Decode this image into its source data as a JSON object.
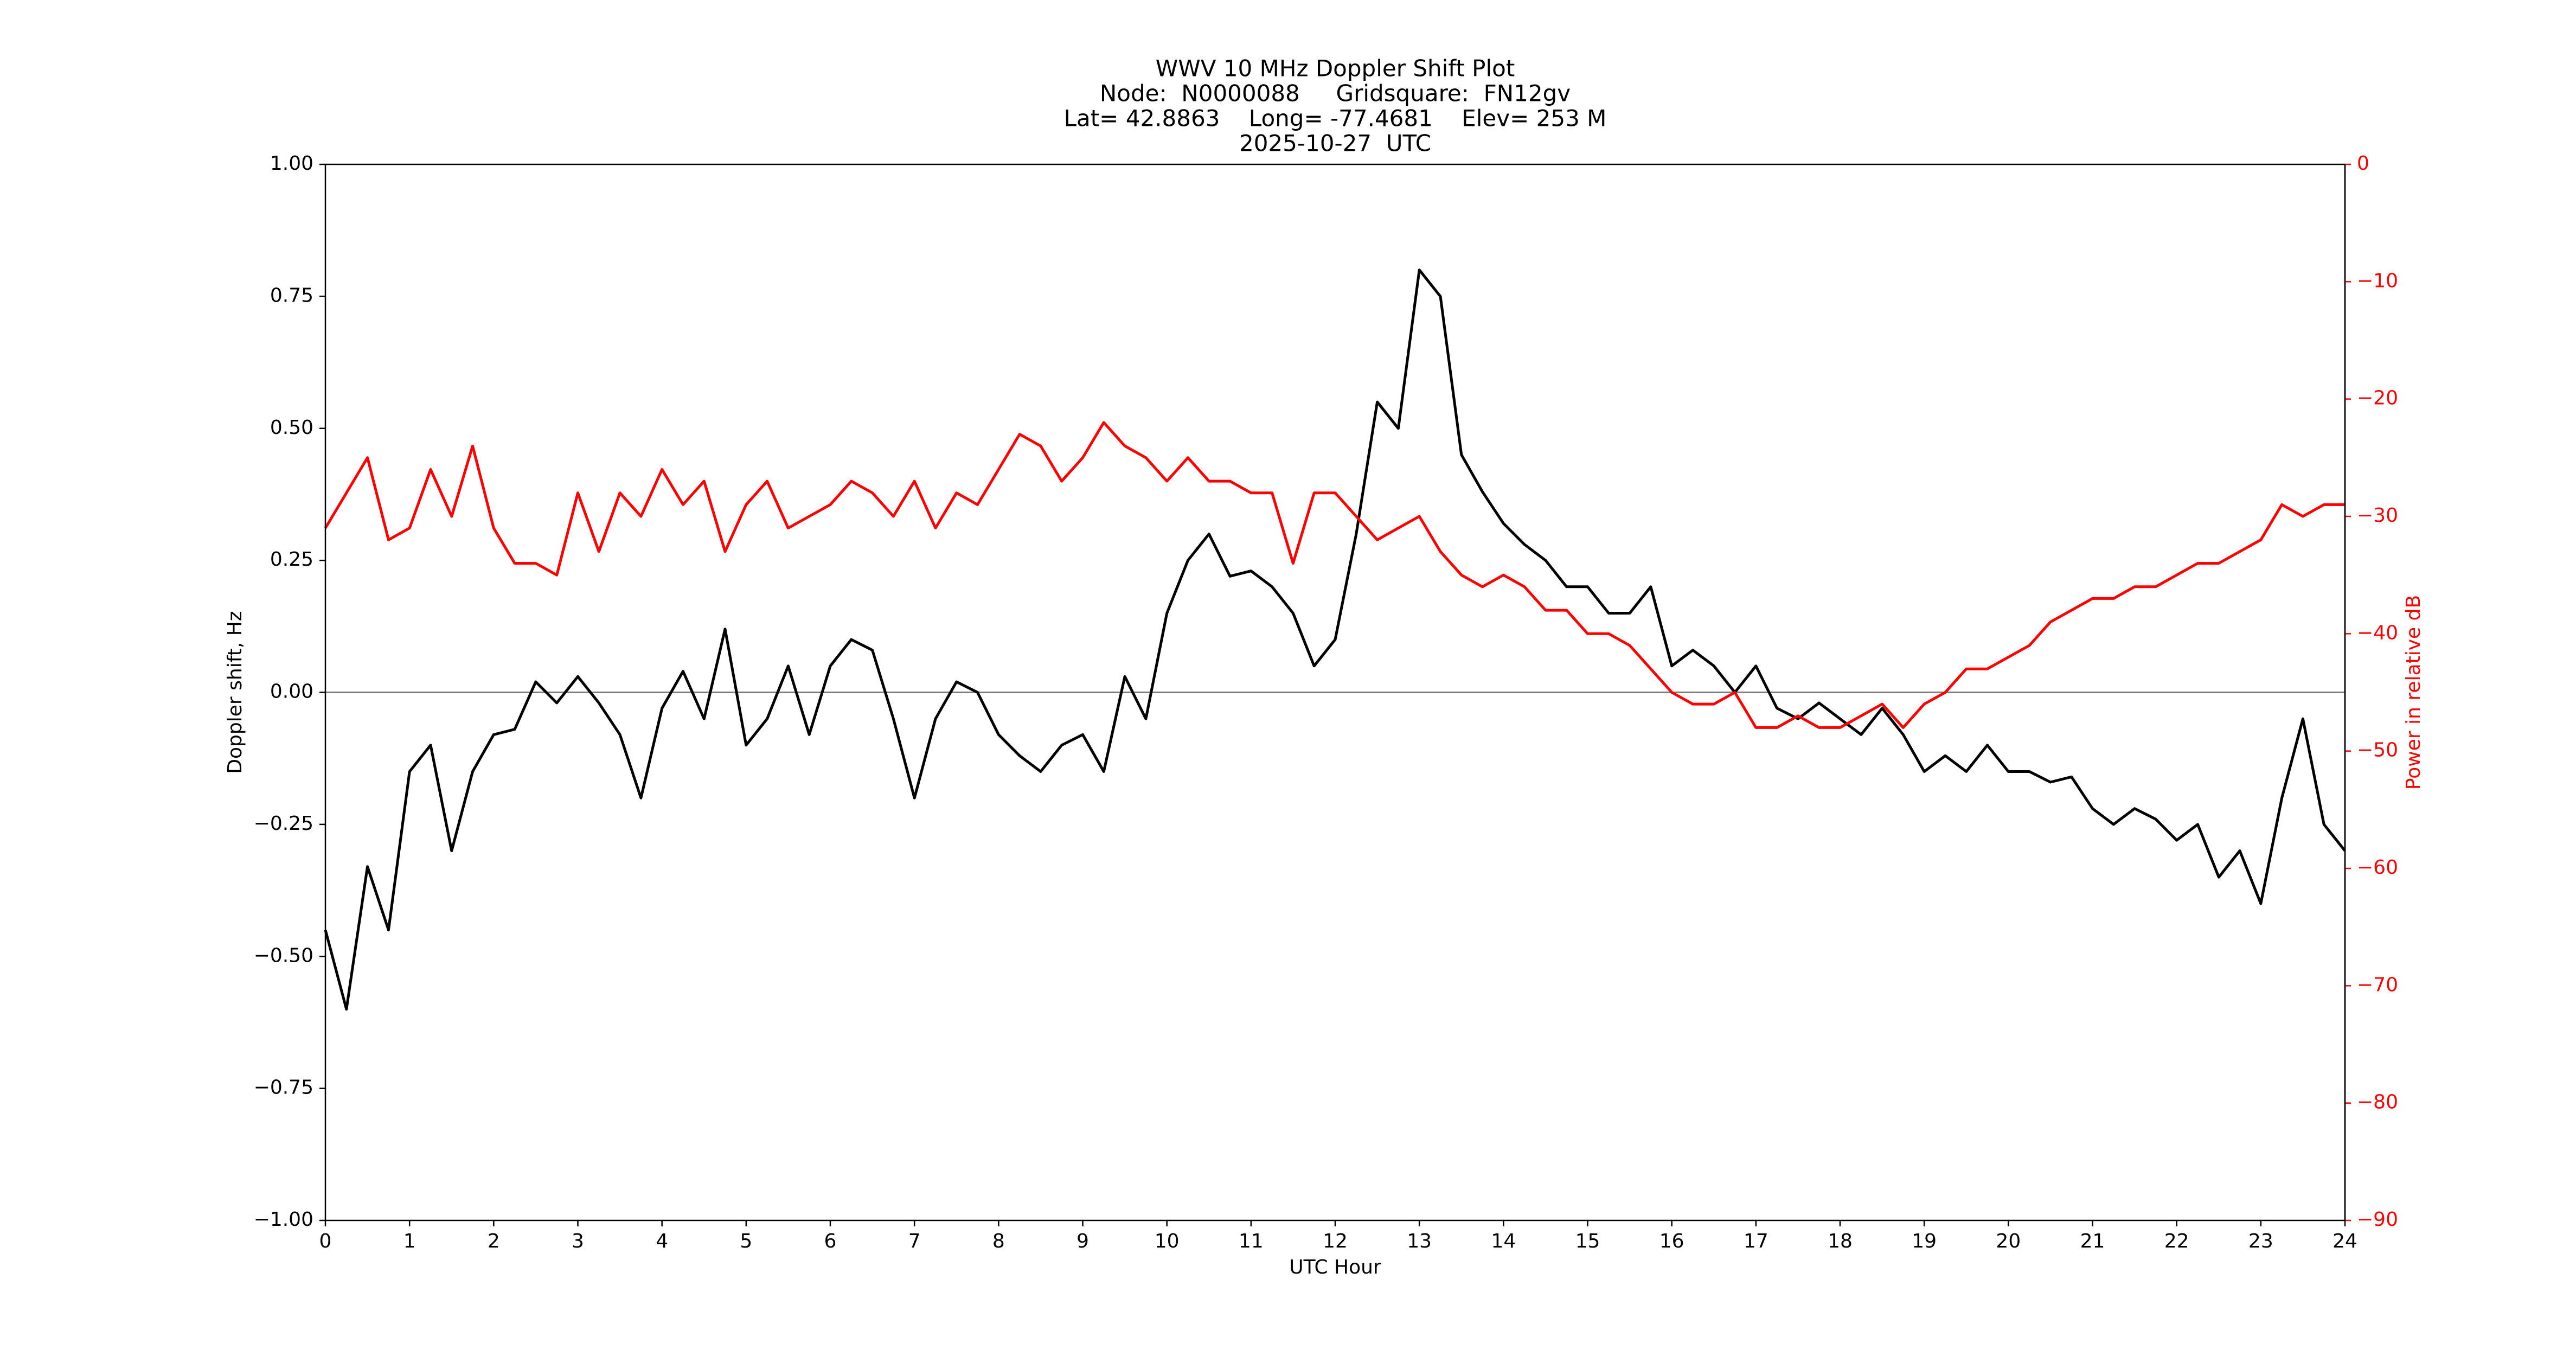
{
  "chart_data": {
    "type": "line",
    "title": [
      "WWV 10 MHz Doppler Shift Plot",
      "Node:  N0000088     Gridsquare:  FN12gv",
      "Lat= 42.8863    Long= -77.4681    Elev= 253 M",
      "2025-10-27  UTC"
    ],
    "x_label": "UTC Hour",
    "y_label": "Doppler shift, Hz",
    "y2_label": "Power in relative dB",
    "x": [
      0,
      0.25,
      0.5,
      0.75,
      1,
      1.25,
      1.5,
      1.75,
      2,
      2.25,
      2.5,
      2.75,
      3,
      3.25,
      3.5,
      3.75,
      4,
      4.25,
      4.5,
      4.75,
      5,
      5.25,
      5.5,
      5.75,
      6,
      6.25,
      6.5,
      6.75,
      7,
      7.25,
      7.5,
      7.75,
      8,
      8.25,
      8.5,
      8.75,
      9,
      9.25,
      9.5,
      9.75,
      10,
      10.25,
      10.5,
      10.75,
      11,
      11.25,
      11.5,
      11.75,
      12,
      12.25,
      12.5,
      12.75,
      13,
      13.25,
      13.5,
      13.75,
      14,
      14.25,
      14.5,
      14.75,
      15,
      15.25,
      15.5,
      15.75,
      16,
      16.25,
      16.5,
      16.75,
      17,
      17.25,
      17.5,
      17.75,
      18,
      18.25,
      18.5,
      18.75,
      19,
      19.25,
      19.5,
      19.75,
      20,
      20.25,
      20.5,
      20.75,
      21,
      21.25,
      21.5,
      21.75,
      22,
      22.25,
      22.5,
      22.75,
      23,
      23.25,
      23.5,
      23.75,
      24
    ],
    "series": [
      {
        "name": "Doppler shift",
        "color": "#000000",
        "values": [
          -0.45,
          -0.6,
          -0.33,
          -0.45,
          -0.15,
          -0.1,
          -0.3,
          -0.15,
          -0.08,
          -0.07,
          0.02,
          -0.02,
          0.03,
          -0.02,
          -0.08,
          -0.2,
          -0.03,
          0.04,
          -0.05,
          0.12,
          -0.1,
          -0.05,
          0.05,
          -0.08,
          0.05,
          0.1,
          0.08,
          -0.05,
          -0.2,
          -0.05,
          0.02,
          0.0,
          -0.08,
          -0.12,
          -0.15,
          -0.1,
          -0.08,
          -0.15,
          0.03,
          -0.05,
          0.15,
          0.25,
          0.3,
          0.22,
          0.23,
          0.2,
          0.15,
          0.05,
          0.1,
          0.3,
          0.55,
          0.5,
          0.8,
          0.75,
          0.45,
          0.38,
          0.32,
          0.28,
          0.25,
          0.2,
          0.2,
          0.15,
          0.15,
          0.2,
          0.05,
          0.08,
          0.05,
          0.0,
          0.05,
          -0.03,
          -0.05,
          -0.02,
          -0.05,
          -0.08,
          -0.03,
          -0.08,
          -0.15,
          -0.12,
          -0.15,
          -0.1,
          -0.15,
          -0.15,
          -0.17,
          -0.16,
          -0.22,
          -0.25,
          -0.22,
          -0.24,
          -0.28,
          -0.25,
          -0.35,
          -0.3,
          -0.4,
          -0.2,
          -0.05,
          -0.25,
          -0.3
        ]
      },
      {
        "name": "Power",
        "color": "#ff0000",
        "axis": "y2",
        "values": [
          -31,
          -28,
          -25,
          -32,
          -31,
          -26,
          -30,
          -24,
          -31,
          -34,
          -34,
          -35,
          -28,
          -33,
          -28,
          -30,
          -26,
          -29,
          -27,
          -33,
          -29,
          -27,
          -31,
          -30,
          -29,
          -27,
          -28,
          -30,
          -27,
          -31,
          -28,
          -29,
          -26,
          -23,
          -24,
          -27,
          -25,
          -22,
          -24,
          -25,
          -27,
          -25,
          -27,
          -27,
          -28,
          -28,
          -34,
          -28,
          -28,
          -30,
          -32,
          -31,
          -30,
          -33,
          -35,
          -36,
          -35,
          -36,
          -38,
          -38,
          -40,
          -40,
          -41,
          -43,
          -45,
          -46,
          -46,
          -45,
          -48,
          -48,
          -47,
          -48,
          -48,
          -47,
          -46,
          -48,
          -46,
          -45,
          -43,
          -43,
          -42,
          -41,
          -39,
          -38,
          -37,
          -37,
          -36,
          -36,
          -35,
          -34,
          -34,
          -33,
          -32,
          -29,
          -30,
          -29,
          -29
        ]
      }
    ],
    "xlim": [
      0,
      24
    ],
    "xticks": [
      0,
      1,
      2,
      3,
      4,
      5,
      6,
      7,
      8,
      9,
      10,
      11,
      12,
      13,
      14,
      15,
      16,
      17,
      18,
      19,
      20,
      21,
      22,
      23,
      24
    ],
    "ylim": [
      -1,
      1
    ],
    "yticks": [
      {
        "value": -1,
        "label": "−1.00"
      },
      {
        "value": -0.75,
        "label": "−0.75"
      },
      {
        "value": -0.5,
        "label": "−0.50"
      },
      {
        "value": -0.25,
        "label": "−0.25"
      },
      {
        "value": 0,
        "label": "0.00"
      },
      {
        "value": 0.25,
        "label": "0.25"
      },
      {
        "value": 0.5,
        "label": "0.50"
      },
      {
        "value": 0.75,
        "label": "0.75"
      },
      {
        "value": 1,
        "label": "1.00"
      }
    ],
    "y2lim": [
      -90,
      0
    ],
    "y2ticks": [
      {
        "value": -90,
        "label": "−90"
      },
      {
        "value": -80,
        "label": "−80"
      },
      {
        "value": -70,
        "label": "−70"
      },
      {
        "value": -60,
        "label": "−60"
      },
      {
        "value": -50,
        "label": "−50"
      },
      {
        "value": -40,
        "label": "−40"
      },
      {
        "value": -30,
        "label": "−30"
      },
      {
        "value": -20,
        "label": "−20"
      },
      {
        "value": -10,
        "label": "−10"
      },
      0
    ],
    "y2_color": "#ff0000",
    "reference_line": 0,
    "grid": false
  }
}
